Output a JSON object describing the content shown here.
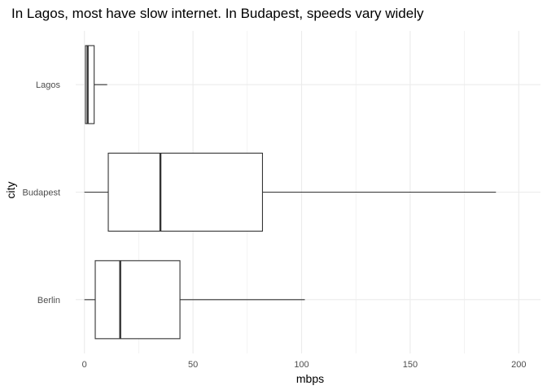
{
  "chart_data": {
    "type": "boxplot",
    "orientation": "horizontal",
    "title": "In Lagos, most have slow internet. In Budapest, speeds vary widely",
    "xlabel": "mbps",
    "ylabel": "city",
    "xlim": [
      -4,
      210
    ],
    "x_ticks": [
      0,
      50,
      100,
      150,
      200
    ],
    "grid": true,
    "categories": [
      "Berlin",
      "Budapest",
      "Lagos"
    ],
    "boxes": [
      {
        "category": "Berlin",
        "whisker_low": 0,
        "q1": 5,
        "median": 16.5,
        "q3": 44,
        "whisker_high": 101.5
      },
      {
        "category": "Budapest",
        "whisker_low": 0,
        "q1": 11,
        "median": 35,
        "q3": 82,
        "whisker_high": 189.5
      },
      {
        "category": "Lagos",
        "whisker_low": 0.5,
        "q1": 0.5,
        "median": 1.5,
        "q3": 4.5,
        "whisker_high": 10.5
      }
    ]
  },
  "colors": {
    "grid": "#ebebeb",
    "box_stroke": "#333333",
    "box_fill": "#ffffff",
    "tick_text": "#4d4d4d"
  }
}
